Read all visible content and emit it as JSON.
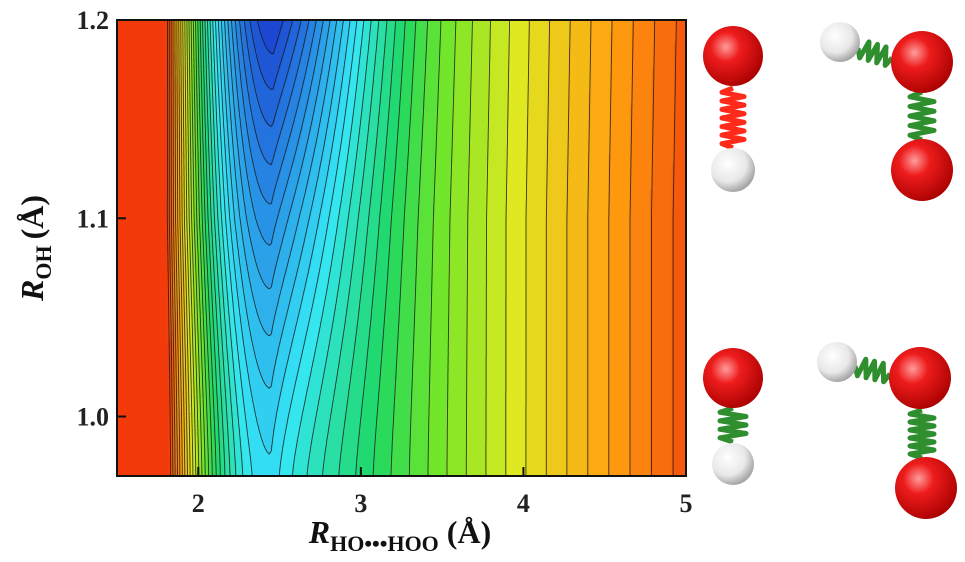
{
  "chart_data": {
    "type": "contour",
    "title": "",
    "xlabel": {
      "symbol": "R",
      "subscript": "HO•••HOO",
      "unit": "(Å)"
    },
    "ylabel": {
      "symbol": "R",
      "subscript": "OH",
      "unit": "(Å)"
    },
    "xlim": [
      1.5,
      5.0
    ],
    "ylim": [
      0.97,
      1.2
    ],
    "x_ticks": [
      2,
      3,
      4,
      5
    ],
    "y_ticks": [
      1.0,
      1.1,
      1.2
    ],
    "x_tick_labels": [
      "2",
      "3",
      "4",
      "5"
    ],
    "y_tick_labels": [
      "1.0",
      "1.1",
      "1.2"
    ],
    "colormap": "jet (blue = low energy, red = high energy)",
    "minimum": {
      "x": 2.45,
      "y": 1.19
    },
    "well_curve": [
      [
        1.0,
        2.45
      ],
      [
        1.05,
        2.45
      ],
      [
        1.1,
        2.45
      ],
      [
        1.15,
        2.46
      ],
      [
        1.2,
        2.47
      ]
    ],
    "color_stops": [
      {
        "pos": 0.0,
        "color": "#1a3fd0"
      },
      {
        "pos": 0.18,
        "color": "#2a9be8"
      },
      {
        "pos": 0.33,
        "color": "#35e8f5"
      },
      {
        "pos": 0.5,
        "color": "#1fd864"
      },
      {
        "pos": 0.6,
        "color": "#6fe62a"
      },
      {
        "pos": 0.72,
        "color": "#dfe820"
      },
      {
        "pos": 0.85,
        "color": "#ffa410"
      },
      {
        "pos": 1.0,
        "color": "#f23a0a"
      }
    ]
  },
  "molecules": [
    {
      "name": "reactant-OH",
      "atoms": [
        "O",
        "H"
      ],
      "bond": "red spring"
    },
    {
      "name": "reactant-HO2",
      "atoms": [
        "H",
        "O",
        "O"
      ],
      "bond": "green spring"
    },
    {
      "name": "product-OH",
      "atoms": [
        "O",
        "H"
      ],
      "bond": "green spring"
    },
    {
      "name": "product-HO2",
      "atoms": [
        "H",
        "O",
        "O"
      ],
      "bond": "green spring"
    }
  ],
  "colors": {
    "oxygen": "#ee1c1c",
    "hydrogen": "#f2f2f2",
    "spring_red": "#ff2a1a",
    "spring_green": "#2f8f2f",
    "contour_line": "#1a1a1a"
  }
}
